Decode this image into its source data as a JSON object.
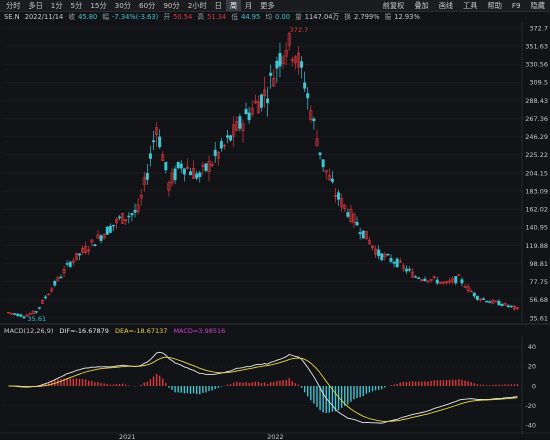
{
  "toolbar": {
    "periods": [
      "分时",
      "多日",
      "1分",
      "5分",
      "15分",
      "30分",
      "60分",
      "90分",
      "2小时",
      "日",
      "周",
      "月",
      "更多"
    ],
    "active_period": "周",
    "menu": [
      "前复权",
      "叠加",
      "画线",
      "工具",
      "帮助",
      "F9",
      "隐藏"
    ]
  },
  "info": {
    "symbol": "SE.N",
    "date": "2022/11/14",
    "close_label": "收",
    "close": "45.80",
    "change_label": "幅",
    "change": "-7.34%(-3.63)",
    "open_label": "开",
    "open": "50.54",
    "high_label": "高",
    "high": "51.34",
    "low_label": "低",
    "low": "44.95",
    "turnover_label": "均",
    "turnover": "0.00",
    "amount_label": "量",
    "amount": "1147.04万",
    "rate_label": "换",
    "rate": "2.799%",
    "amp_label": "振",
    "amp": "12.93%"
  },
  "price_axis": [
    "372.7",
    "351.63",
    "330.56",
    "309.5",
    "288.43",
    "267.36",
    "246.29",
    "225.22",
    "204.15",
    "183.09",
    "162.02",
    "140.95",
    "119.88",
    "98.81",
    "77.75",
    "56.68",
    "35.61"
  ],
  "peak_label": "372.7",
  "low_label": "35.61",
  "macd": {
    "name": "MACD(12,26,9)",
    "dif": "DIF=-16.67879",
    "dea": "DEA=-18.67137",
    "macd": "MACD=3.98516",
    "axis": [
      "40",
      "20",
      "0",
      "-20",
      "-40"
    ]
  },
  "year_labels": [
    "2021",
    "2022"
  ],
  "colors": {
    "up": "#e0383e",
    "down": "#3ec7d4",
    "dif": "#e8e8e8",
    "dea": "#e6d84a",
    "macd_label": "#d43fd4",
    "dea_label": "#e6d84a",
    "dif_label": "#e8e8e8",
    "price_text": "#c8c8c8"
  },
  "chart_data": {
    "type": "candlestick",
    "title": "SE.N",
    "ylim": [
      35.61,
      372.7
    ],
    "anchors": [
      [
        0,
        42
      ],
      [
        5,
        38
      ],
      [
        9,
        43
      ],
      [
        13,
        65
      ],
      [
        20,
        100
      ],
      [
        28,
        125
      ],
      [
        36,
        150
      ],
      [
        42,
        160
      ],
      [
        45,
        205
      ],
      [
        48,
        260
      ],
      [
        52,
        190
      ],
      [
        56,
        215
      ],
      [
        62,
        200
      ],
      [
        70,
        235
      ],
      [
        78,
        275
      ],
      [
        84,
        300
      ],
      [
        88,
        340
      ],
      [
        90,
        355
      ],
      [
        93,
        345
      ],
      [
        96,
        310
      ],
      [
        99,
        260
      ],
      [
        102,
        215
      ],
      [
        106,
        180
      ],
      [
        110,
        160
      ],
      [
        115,
        135
      ],
      [
        120,
        110
      ],
      [
        126,
        100
      ],
      [
        132,
        84
      ],
      [
        138,
        80
      ],
      [
        142,
        75
      ],
      [
        146,
        82
      ],
      [
        149,
        70
      ],
      [
        152,
        60
      ],
      [
        156,
        55
      ],
      [
        160,
        52
      ],
      [
        165,
        46
      ]
    ],
    "highlights": {
      "peak": {
        "x": 90,
        "y": 372.7
      },
      "low": {
        "x": 5,
        "y": 35.61
      }
    },
    "macd_ylim": [
      -45,
      45
    ]
  }
}
